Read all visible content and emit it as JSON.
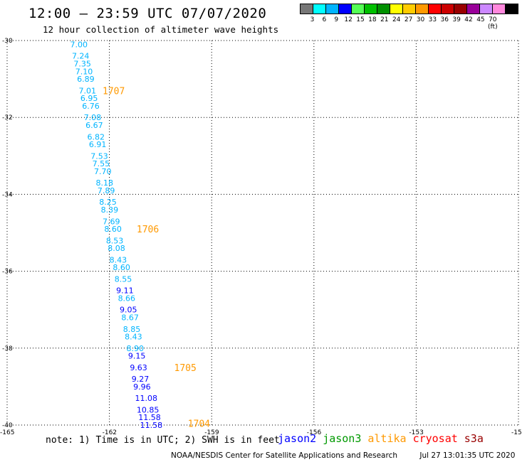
{
  "header": {
    "title": "12:00 – 23:59 UTC 07/07/2020",
    "subtitle": "12 hour collection of altimeter wave heights"
  },
  "colorbar": {
    "colors": [
      "#777777",
      "#00ffff",
      "#00b4ff",
      "#0000ff",
      "#55ff55",
      "#00c000",
      "#009000",
      "#ffff00",
      "#ffcc00",
      "#ff9900",
      "#ff0000",
      "#cc0000",
      "#990000",
      "#990099",
      "#cc88ff",
      "#ff88dd",
      "#000000"
    ],
    "labels": [
      "3",
      "6",
      "9",
      "12",
      "15",
      "18",
      "21",
      "24",
      "27",
      "30",
      "33",
      "36",
      "39",
      "42",
      "45",
      "70 (ft)"
    ]
  },
  "axes": {
    "lat_labels": [
      "-30",
      "-32",
      "-34",
      "-36",
      "-38",
      "-40"
    ],
    "lon_labels": [
      "-165",
      "-162",
      "-159",
      "-156",
      "-153",
      "-15"
    ]
  },
  "chart_data": {
    "type": "scatter",
    "units": "ft",
    "wave_heights": [
      {
        "lat": -30.1,
        "lon": -163.15,
        "swh": "7.00",
        "color": "#00b4ff"
      },
      {
        "lat": -30.4,
        "lon": -163.1,
        "swh": "7.24",
        "color": "#00b4ff"
      },
      {
        "lat": -30.6,
        "lon": -163.05,
        "swh": "7.35",
        "color": "#00b4ff"
      },
      {
        "lat": -30.8,
        "lon": -163.0,
        "swh": "7.10",
        "color": "#00b4ff"
      },
      {
        "lat": -31.0,
        "lon": -162.95,
        "swh": "6.89",
        "color": "#00b4ff"
      },
      {
        "lat": -31.3,
        "lon": -162.9,
        "swh": "7.01",
        "color": "#00b4ff"
      },
      {
        "lat": -31.5,
        "lon": -162.85,
        "swh": "6.95",
        "color": "#00b4ff"
      },
      {
        "lat": -31.7,
        "lon": -162.8,
        "swh": "6.76",
        "color": "#00b4ff"
      },
      {
        "lat": -32.0,
        "lon": -162.75,
        "swh": "7.08",
        "color": "#00b4ff"
      },
      {
        "lat": -32.2,
        "lon": -162.7,
        "swh": "6.67",
        "color": "#00b4ff"
      },
      {
        "lat": -32.5,
        "lon": -162.65,
        "swh": "6.82",
        "color": "#00b4ff"
      },
      {
        "lat": -32.7,
        "lon": -162.6,
        "swh": "6.91",
        "color": "#00b4ff"
      },
      {
        "lat": -33.0,
        "lon": -162.55,
        "swh": "7.53",
        "color": "#00b4ff"
      },
      {
        "lat": -33.2,
        "lon": -162.5,
        "swh": "7.55",
        "color": "#00b4ff"
      },
      {
        "lat": -33.4,
        "lon": -162.45,
        "swh": "7.70",
        "color": "#00b4ff"
      },
      {
        "lat": -33.7,
        "lon": -162.4,
        "swh": "8.18",
        "color": "#00b4ff"
      },
      {
        "lat": -33.9,
        "lon": -162.35,
        "swh": "7.89",
        "color": "#00b4ff"
      },
      {
        "lat": -34.2,
        "lon": -162.3,
        "swh": "8.25",
        "color": "#00b4ff"
      },
      {
        "lat": -34.4,
        "lon": -162.25,
        "swh": "8.39",
        "color": "#00b4ff"
      },
      {
        "lat": -34.7,
        "lon": -162.2,
        "swh": "7.69",
        "color": "#00b4ff"
      },
      {
        "lat": -34.9,
        "lon": -162.15,
        "swh": "8.60",
        "color": "#00b4ff"
      },
      {
        "lat": -35.2,
        "lon": -162.1,
        "swh": "8.53",
        "color": "#00b4ff"
      },
      {
        "lat": -35.4,
        "lon": -162.05,
        "swh": "8.08",
        "color": "#00b4ff"
      },
      {
        "lat": -35.7,
        "lon": -162.0,
        "swh": "8.43",
        "color": "#00b4ff"
      },
      {
        "lat": -35.9,
        "lon": -161.9,
        "swh": "8.60",
        "color": "#00b4ff"
      },
      {
        "lat": -36.2,
        "lon": -161.85,
        "swh": "8.55",
        "color": "#00b4ff"
      },
      {
        "lat": -36.5,
        "lon": -161.8,
        "swh": "9.11",
        "color": "#0000ff"
      },
      {
        "lat": -36.7,
        "lon": -161.75,
        "swh": "8.66",
        "color": "#00b4ff"
      },
      {
        "lat": -37.0,
        "lon": -161.7,
        "swh": "9.05",
        "color": "#0000ff"
      },
      {
        "lat": -37.2,
        "lon": -161.65,
        "swh": "8.67",
        "color": "#00b4ff"
      },
      {
        "lat": -37.5,
        "lon": -161.6,
        "swh": "8.85",
        "color": "#00b4ff"
      },
      {
        "lat": -37.7,
        "lon": -161.55,
        "swh": "8.43",
        "color": "#00b4ff"
      },
      {
        "lat": -38.0,
        "lon": -161.5,
        "swh": "8.90",
        "color": "#00b4ff"
      },
      {
        "lat": -38.2,
        "lon": -161.45,
        "swh": "9.15",
        "color": "#0000ff"
      },
      {
        "lat": -38.5,
        "lon": -161.4,
        "swh": "9.63",
        "color": "#0000ff"
      },
      {
        "lat": -38.8,
        "lon": -161.35,
        "swh": "9.27",
        "color": "#0000ff"
      },
      {
        "lat": -39.0,
        "lon": -161.3,
        "swh": "9.96",
        "color": "#0000ff"
      },
      {
        "lat": -39.3,
        "lon": -161.25,
        "swh": "11.08",
        "color": "#0000ff"
      },
      {
        "lat": -39.6,
        "lon": -161.2,
        "swh": "10.85",
        "color": "#0000ff"
      },
      {
        "lat": -39.8,
        "lon": -161.15,
        "swh": "11.58",
        "color": "#0000ff"
      },
      {
        "lat": -40.0,
        "lon": -161.1,
        "swh": "11.58",
        "color": "#0000ff"
      }
    ],
    "time_labels": [
      {
        "lat": -31.3,
        "lon": -162.2,
        "label": "1707"
      },
      {
        "lat": -34.9,
        "lon": -161.2,
        "label": "1706"
      },
      {
        "lat": -38.5,
        "lon": -160.1,
        "label": "1705"
      },
      {
        "lat": -39.95,
        "lon": -159.7,
        "label": "1704"
      }
    ],
    "time_label_color": "#ff9900"
  },
  "note": "note: 1) Time is in UTC; 2) SWH is in feet",
  "legend": [
    {
      "label": "jason2",
      "color": "#0000ff"
    },
    {
      "label": "jason3",
      "color": "#009900"
    },
    {
      "label": "altika",
      "color": "#ff9900"
    },
    {
      "label": "cryosat",
      "color": "#ff0000"
    },
    {
      "label": "s3a",
      "color": "#990000"
    }
  ],
  "footer": {
    "credit": "NOAA/NESDIS Center for Satellite Applications and Research",
    "timestamp": "Jul 27 13:01:35 UTC 2020"
  }
}
